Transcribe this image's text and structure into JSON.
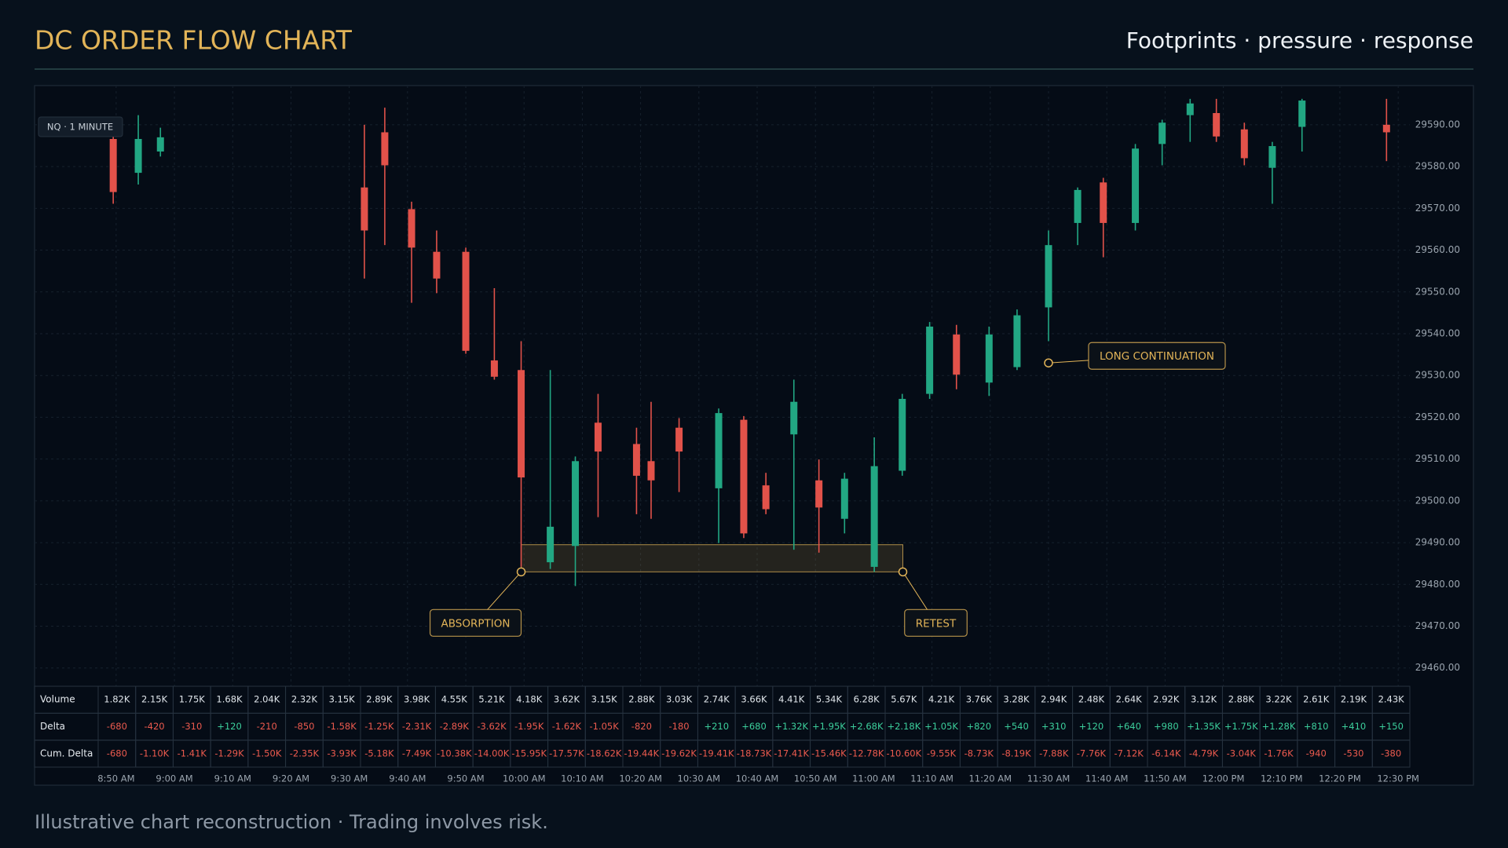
{
  "chart_data": {
    "type": "candlestick",
    "title": "DC ORDER FLOW CHART",
    "subtitle": "Footprints · pressure · response",
    "badge": "NQ · 1 MINUTE",
    "footer": "Illustrative chart reconstruction · Trading involves risk.",
    "up_color": "#22a783",
    "down_color": "#e2524a",
    "accent_color": "#e2b458",
    "grid": true,
    "xlim": [
      516,
      752
    ],
    "ylim": [
      29456,
      29599
    ],
    "xticks": [
      {
        "value": 530,
        "label": "8:50 AM"
      },
      {
        "value": 540,
        "label": "9:00 AM"
      },
      {
        "value": 550,
        "label": "9:10 AM"
      },
      {
        "value": 560,
        "label": "9:20 AM"
      },
      {
        "value": 570,
        "label": "9:30 AM"
      },
      {
        "value": 580,
        "label": "9:40 AM"
      },
      {
        "value": 590,
        "label": "9:50 AM"
      },
      {
        "value": 600,
        "label": "10:00 AM"
      },
      {
        "value": 610,
        "label": "10:10 AM"
      },
      {
        "value": 620,
        "label": "10:20 AM"
      },
      {
        "value": 630,
        "label": "10:30 AM"
      },
      {
        "value": 640,
        "label": "10:40 AM"
      },
      {
        "value": 650,
        "label": "10:50 AM"
      },
      {
        "value": 660,
        "label": "11:00 AM"
      },
      {
        "value": 670,
        "label": "11:10 AM"
      },
      {
        "value": 680,
        "label": "11:20 AM"
      },
      {
        "value": 690,
        "label": "11:30 AM"
      },
      {
        "value": 700,
        "label": "11:40 AM"
      },
      {
        "value": 710,
        "label": "11:50 AM"
      },
      {
        "value": 720,
        "label": "12:00 PM"
      },
      {
        "value": 730,
        "label": "12:10 PM"
      },
      {
        "value": 740,
        "label": "12:20 PM"
      },
      {
        "value": 750,
        "label": "12:30 PM"
      }
    ],
    "yticks": [
      {
        "value": 29460,
        "label": "29460.00"
      },
      {
        "value": 29470,
        "label": "29470.00"
      },
      {
        "value": 29480,
        "label": "29480.00"
      },
      {
        "value": 29490,
        "label": "29490.00"
      },
      {
        "value": 29500,
        "label": "29500.00"
      },
      {
        "value": 29510,
        "label": "29510.00"
      },
      {
        "value": 29520,
        "label": "29520.00"
      },
      {
        "value": 29530,
        "label": "29530.00"
      },
      {
        "value": 29540,
        "label": "29540.00"
      },
      {
        "value": 29550,
        "label": "29550.00"
      },
      {
        "value": 29560,
        "label": "29560.00"
      },
      {
        "value": 29570,
        "label": "29570.00"
      },
      {
        "value": 29580,
        "label": "29580.00"
      },
      {
        "value": 29590,
        "label": "29590.00"
      }
    ],
    "candles": [
      {
        "x": 529.5,
        "open": 29586.6,
        "high": 29588.9,
        "low": 29571.1,
        "close": 29573.9
      },
      {
        "x": 533.8,
        "open": 29578.5,
        "high": 29592.3,
        "low": 29575.7,
        "close": 29586.6
      },
      {
        "x": 537.6,
        "open": 29583.6,
        "high": 29589.3,
        "low": 29582.4,
        "close": 29587.0
      },
      {
        "x": 572.6,
        "open": 29575.0,
        "high": 29590.0,
        "low": 29553.2,
        "close": 29564.7
      },
      {
        "x": 576.1,
        "open": 29588.2,
        "high": 29594.1,
        "low": 29561.2,
        "close": 29580.3
      },
      {
        "x": 580.7,
        "open": 29569.8,
        "high": 29571.6,
        "low": 29547.4,
        "close": 29560.6
      },
      {
        "x": 585.0,
        "open": 29559.6,
        "high": 29564.7,
        "low": 29549.7,
        "close": 29553.2
      },
      {
        "x": 590.0,
        "open": 29559.6,
        "high": 29560.6,
        "low": 29535.2,
        "close": 29535.9
      },
      {
        "x": 594.9,
        "open": 29533.6,
        "high": 29550.9,
        "low": 29529.0,
        "close": 29529.7
      },
      {
        "x": 599.5,
        "open": 29531.3,
        "high": 29538.2,
        "low": 29484.2,
        "close": 29505.6
      },
      {
        "x": 604.5,
        "open": 29485.3,
        "high": 29531.3,
        "low": 29483.7,
        "close": 29493.8
      },
      {
        "x": 608.8,
        "open": 29489.2,
        "high": 29510.6,
        "low": 29479.6,
        "close": 29509.5
      },
      {
        "x": 612.7,
        "open": 29518.7,
        "high": 29525.6,
        "low": 29496.1,
        "close": 29511.8
      },
      {
        "x": 619.3,
        "open": 29513.6,
        "high": 29517.5,
        "low": 29496.8,
        "close": 29506.0
      },
      {
        "x": 621.8,
        "open": 29509.5,
        "high": 29523.7,
        "low": 29495.7,
        "close": 29504.9
      },
      {
        "x": 626.6,
        "open": 29517.5,
        "high": 29519.8,
        "low": 29502.1,
        "close": 29511.8
      },
      {
        "x": 633.4,
        "open": 29503.0,
        "high": 29522.1,
        "low": 29489.9,
        "close": 29521.0
      },
      {
        "x": 637.7,
        "open": 29519.4,
        "high": 29520.3,
        "low": 29491.1,
        "close": 29492.2
      },
      {
        "x": 641.5,
        "open": 29503.7,
        "high": 29506.7,
        "low": 29496.8,
        "close": 29498.0
      },
      {
        "x": 646.3,
        "open": 29515.9,
        "high": 29529.0,
        "low": 29488.3,
        "close": 29523.7
      },
      {
        "x": 650.6,
        "open": 29504.9,
        "high": 29509.9,
        "low": 29487.6,
        "close": 29498.4
      },
      {
        "x": 655.0,
        "open": 29495.7,
        "high": 29506.7,
        "low": 29492.2,
        "close": 29505.3
      },
      {
        "x": 660.1,
        "open": 29484.2,
        "high": 29515.2,
        "low": 29483.0,
        "close": 29508.3
      },
      {
        "x": 664.9,
        "open": 29507.2,
        "high": 29525.6,
        "low": 29506.0,
        "close": 29524.4
      },
      {
        "x": 669.6,
        "open": 29525.6,
        "high": 29542.8,
        "low": 29524.4,
        "close": 29541.7
      },
      {
        "x": 674.2,
        "open": 29539.8,
        "high": 29542.1,
        "low": 29526.7,
        "close": 29530.2
      },
      {
        "x": 679.8,
        "open": 29528.3,
        "high": 29541.7,
        "low": 29525.1,
        "close": 29539.8
      },
      {
        "x": 684.6,
        "open": 29532.0,
        "high": 29545.8,
        "low": 29531.3,
        "close": 29544.4
      },
      {
        "x": 690.0,
        "open": 29546.3,
        "high": 29564.7,
        "low": 29538.2,
        "close": 29561.2
      },
      {
        "x": 695.0,
        "open": 29566.5,
        "high": 29575.0,
        "low": 29561.2,
        "close": 29574.4
      },
      {
        "x": 699.4,
        "open": 29576.2,
        "high": 29577.3,
        "low": 29558.3,
        "close": 29566.5
      },
      {
        "x": 704.9,
        "open": 29566.5,
        "high": 29585.4,
        "low": 29564.7,
        "close": 29584.3
      },
      {
        "x": 709.5,
        "open": 29585.4,
        "high": 29591.2,
        "low": 29580.3,
        "close": 29590.5
      },
      {
        "x": 714.3,
        "open": 29592.3,
        "high": 29596.2,
        "low": 29585.9,
        "close": 29595.1
      },
      {
        "x": 718.8,
        "open": 29592.8,
        "high": 29596.2,
        "low": 29585.9,
        "close": 29587.2
      },
      {
        "x": 723.6,
        "open": 29588.9,
        "high": 29590.5,
        "low": 29580.3,
        "close": 29582.0
      },
      {
        "x": 728.4,
        "open": 29579.7,
        "high": 29585.9,
        "low": 29571.1,
        "close": 29584.9
      },
      {
        "x": 733.5,
        "open": 29589.5,
        "high": 29596.2,
        "low": 29583.6,
        "close": 29595.8
      },
      {
        "x": 748.0,
        "open": 29590.0,
        "high": 29596.2,
        "low": 29581.3,
        "close": 29588.2
      }
    ],
    "zone": {
      "x": [
        599.5,
        665.0
      ],
      "y": [
        29483.0,
        29489.5
      ]
    },
    "annotations": [
      {
        "text": "ABSORPTION",
        "x": 599.5,
        "y": 29483.0
      },
      {
        "text": "RETEST",
        "x": 665.0,
        "y": 29483.0
      },
      {
        "text": "LONG CONTINUATION",
        "x": 690.0,
        "y": 29533.0
      }
    ],
    "table": {
      "rows": [
        {
          "label": "Volume",
          "values": [
            "1.82K",
            "2.15K",
            "1.75K",
            "1.68K",
            "2.04K",
            "2.32K",
            "3.15K",
            "2.89K",
            "3.98K",
            "4.55K",
            "5.21K",
            "4.18K",
            "3.62K",
            "3.15K",
            "2.88K",
            "3.03K",
            "2.74K",
            "3.66K",
            "4.41K",
            "5.34K",
            "6.28K",
            "5.67K",
            "4.21K",
            "3.76K",
            "3.28K",
            "2.94K",
            "2.48K",
            "2.64K",
            "2.92K",
            "3.12K",
            "2.88K",
            "3.22K",
            "2.61K",
            "2.19K",
            "2.43K"
          ]
        },
        {
          "label": "Delta",
          "values": [
            "-680",
            "-420",
            "-310",
            "+120",
            "-210",
            "-850",
            "-1.58K",
            "-1.25K",
            "-2.31K",
            "-2.89K",
            "-3.62K",
            "-1.95K",
            "-1.62K",
            "-1.05K",
            "-820",
            "-180",
            "+210",
            "+680",
            "+1.32K",
            "+1.95K",
            "+2.68K",
            "+2.18K",
            "+1.05K",
            "+820",
            "+540",
            "+310",
            "+120",
            "+640",
            "+980",
            "+1.35K",
            "+1.75K",
            "+1.28K",
            "+810",
            "+410",
            "+150"
          ]
        },
        {
          "label": "Cum. Delta",
          "values": [
            "-680",
            "-1.10K",
            "-1.41K",
            "-1.29K",
            "-1.50K",
            "-2.35K",
            "-3.93K",
            "-5.18K",
            "-7.49K",
            "-10.38K",
            "-14.00K",
            "-15.95K",
            "-17.57K",
            "-18.62K",
            "-19.44K",
            "-19.62K",
            "-19.41K",
            "-18.73K",
            "-17.41K",
            "-15.46K",
            "-12.78K",
            "-10.60K",
            "-9.55K",
            "-8.73K",
            "-8.19K",
            "-7.88K",
            "-7.76K",
            "-7.12K",
            "-6.14K",
            "-4.79K",
            "-3.04K",
            "-1.76K",
            "-940",
            "-530",
            "-380"
          ]
        }
      ]
    }
  }
}
